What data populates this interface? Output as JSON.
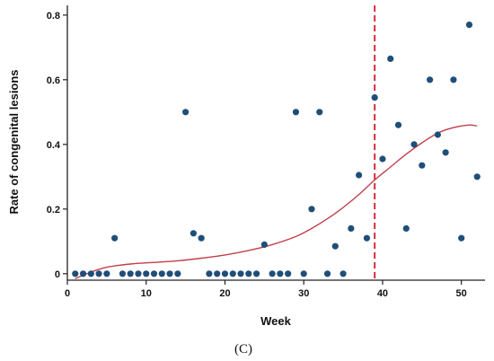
{
  "chart_data": {
    "type": "scatter",
    "title": "",
    "xlabel": "Week",
    "ylabel": "Rate of congenital lesions",
    "xlim": [
      0,
      53
    ],
    "ylim": [
      -0.02,
      0.83
    ],
    "x_ticks": [
      0,
      10,
      20,
      30,
      40,
      50
    ],
    "y_ticks": [
      0,
      0.2,
      0.4,
      0.6,
      0.8
    ],
    "y_tick_labels": [
      "0",
      "0.2",
      "0.4",
      "0.6",
      "0.8"
    ],
    "grid": false,
    "vline_x": 39,
    "colors": {
      "points": "#1f4e79",
      "trend": "#c0404a",
      "vline": "#d62c3c",
      "axis": "#222222"
    },
    "points": [
      [
        1,
        0
      ],
      [
        2,
        0
      ],
      [
        3,
        0
      ],
      [
        4,
        0
      ],
      [
        5,
        0
      ],
      [
        6,
        0.11
      ],
      [
        7,
        0
      ],
      [
        8,
        0
      ],
      [
        9,
        0
      ],
      [
        10,
        0
      ],
      [
        11,
        0
      ],
      [
        12,
        0
      ],
      [
        13,
        0
      ],
      [
        14,
        0
      ],
      [
        15,
        0.5
      ],
      [
        16,
        0.125
      ],
      [
        17,
        0.11
      ],
      [
        18,
        0
      ],
      [
        19,
        0
      ],
      [
        20,
        0
      ],
      [
        21,
        0
      ],
      [
        22,
        0
      ],
      [
        23,
        0
      ],
      [
        24,
        0
      ],
      [
        25,
        0.09
      ],
      [
        26,
        0
      ],
      [
        27,
        0
      ],
      [
        28,
        0
      ],
      [
        29,
        0.5
      ],
      [
        30,
        0
      ],
      [
        31,
        0.2
      ],
      [
        32,
        0.5
      ],
      [
        33,
        0
      ],
      [
        34,
        0.085
      ],
      [
        35,
        0
      ],
      [
        36,
        0.14
      ],
      [
        37,
        0.305
      ],
      [
        38,
        0.11
      ],
      [
        39,
        0.545
      ],
      [
        40,
        0.355
      ],
      [
        41,
        0.665
      ],
      [
        42,
        0.46
      ],
      [
        43,
        0.14
      ],
      [
        44,
        0.4
      ],
      [
        45,
        0.335
      ],
      [
        46,
        0.6
      ],
      [
        47,
        0.43
      ],
      [
        48,
        0.375
      ],
      [
        49,
        0.6
      ],
      [
        50,
        0.11
      ],
      [
        51,
        0.77
      ],
      [
        52,
        0.3
      ]
    ],
    "trend": [
      [
        1,
        -0.015
      ],
      [
        3,
        0.005
      ],
      [
        5,
        0.02
      ],
      [
        8,
        0.03
      ],
      [
        11,
        0.035
      ],
      [
        14,
        0.04
      ],
      [
        17,
        0.048
      ],
      [
        20,
        0.058
      ],
      [
        23,
        0.072
      ],
      [
        26,
        0.09
      ],
      [
        29,
        0.115
      ],
      [
        31,
        0.14
      ],
      [
        33,
        0.17
      ],
      [
        35,
        0.205
      ],
      [
        37,
        0.245
      ],
      [
        39,
        0.29
      ],
      [
        41,
        0.33
      ],
      [
        43,
        0.37
      ],
      [
        45,
        0.405
      ],
      [
        47,
        0.435
      ],
      [
        49,
        0.452
      ],
      [
        51,
        0.46
      ],
      [
        52,
        0.457
      ]
    ]
  },
  "caption": "(C)"
}
